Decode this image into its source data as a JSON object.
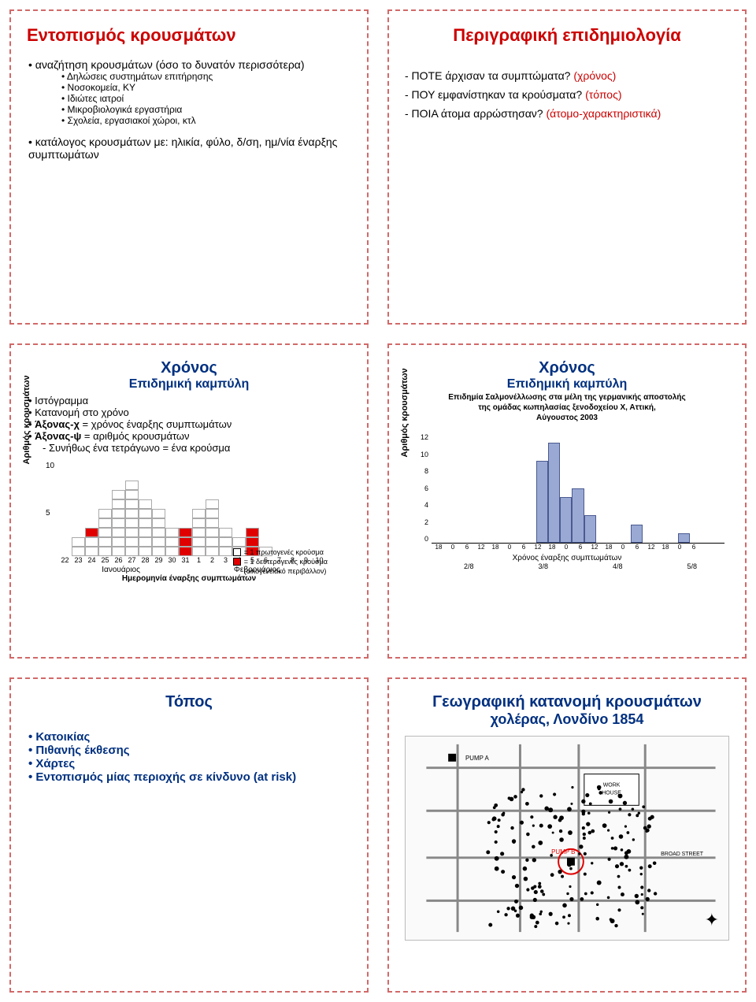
{
  "panel1": {
    "title": "Εντοπισμός κρουσμάτων",
    "lead": "αναζήτηση κρουσμάτων (όσο το δυνατόν περισσότερα)",
    "sub_items": [
      "Δηλώσεις συστημάτων επιτήρησης",
      "Νοσοκομεία, ΚΥ",
      "Ιδιώτες ιατροί",
      "Μικροβιολογικά εργαστήρια",
      "Σχολεία, εργασιακοί χώροι, κτλ"
    ],
    "tail": "κατάλογος κρουσμάτων με: ηλικία, φύλο, δ/ση, ημ/νία έναρξης συμπτωμάτων"
  },
  "panel2": {
    "title": "Περιγραφική επιδημιολογία",
    "q1_text": "- ΠOTE άρχισαν τα συμπτώματα?",
    "q1_paren": "(χρόνος)",
    "q2_text": "- ΠΟΥ εμφανίστηκαν τα κρούσματα?",
    "q2_paren": "(τόπος)",
    "q3_text": "- ΠΟΙΑ άτομα αρρώστησαν?",
    "q3_paren": "(άτομο-χαρακτηριστικά)"
  },
  "panel3": {
    "t1": "Χρόνος",
    "t2": "Επιδημική καμπύλη",
    "bullets": [
      "Ιστόγραμμα",
      "Κατανομή στο χρόνο",
      "Άξονας-χ = χρόνος έναρξης συμπτωμάτων",
      "Άξονας-ψ = αριθμός κρουσμάτων"
    ],
    "note": "- Συνήθως ένα τετράγωνο = ένα κρούσμα",
    "ylab": "Αριθμός κρουσμάτων",
    "yticks": [
      "10",
      "5"
    ],
    "legend": {
      "a_color": "#ffffff",
      "a_text": "= 1 πρωτογενές κρούσμα",
      "b_color": "#e00000",
      "b_text": "= 1 δευτερογενές κρούσμα",
      "b_sub": "(οικογενειακό περιβάλλον)"
    },
    "grid_rows": [
      "....................",
      "....................",
      ".....#..............",
      "....##..............",
      "....###....#........",
      "...#####..##........",
      "...#####..##........",
      "..R######R###.R.....",
      ".########R####R.....",
      ".########R####R#...."
    ],
    "xticks": [
      "22",
      "23",
      "24",
      "25",
      "26",
      "27",
      "28",
      "29",
      "30",
      "31",
      "1",
      "2",
      "3",
      "4",
      "5",
      "6",
      "7",
      "8",
      "9",
      "10"
    ],
    "month_a": "Ιανουάριος",
    "month_b": "Φεβρουάριος",
    "xlab": "Ημερομηνία έναρξης συμπτωμάτων"
  },
  "panel4": {
    "t1": "Χρόνος",
    "t2": "Επιδημική καμπύλη",
    "caption1": "Επιδημία Σαλμονέλλωσης στα μέλη της γερμανικής αποστολής",
    "caption2": "της ομάδας κωπηλασίας ξενοδοχείου Χ, Αττική,",
    "caption3": "Αύγουστος 2003",
    "ylab": "Αριθμός κρουσμάτων",
    "ymax": 12,
    "yticks": [
      "12",
      "10",
      "8",
      "6",
      "4",
      "2",
      "0"
    ],
    "bar_color": "#9aa9d4",
    "values": [
      0,
      0,
      0,
      0,
      0,
      0,
      0,
      0,
      0,
      9,
      11,
      5,
      6,
      3,
      0,
      0,
      0,
      2,
      0,
      0,
      0,
      1,
      0,
      0,
      0
    ],
    "xticks_hours": [
      "18",
      "0",
      "6",
      "12",
      "18",
      "0",
      "6",
      "12",
      "18",
      "0",
      "6",
      "12",
      "18",
      "0",
      "6",
      "12",
      "18",
      "0",
      "6"
    ],
    "xdates": [
      "2/8",
      "3/8",
      "4/8",
      "5/8"
    ],
    "xlab": "Χρόνος έναρξης συμπτωμάτων"
  },
  "panel5": {
    "title": "Τόπος",
    "bullets": [
      "Κατοικίας",
      "Πιθανής έκθεσης",
      "Χάρτες",
      "Εντοπισμός μίας περιοχής σε κίνδυνο (at risk)"
    ]
  },
  "panel6": {
    "title1": "Γεωγραφική κατανομή κρουσμάτων",
    "title2": "χολέρας, Λονδίνο 1854",
    "pump_a": "PUMP A",
    "pump_b": "PUMP B",
    "work_house": "WORK HOUSE",
    "broad_street": "BROAD STREET"
  }
}
